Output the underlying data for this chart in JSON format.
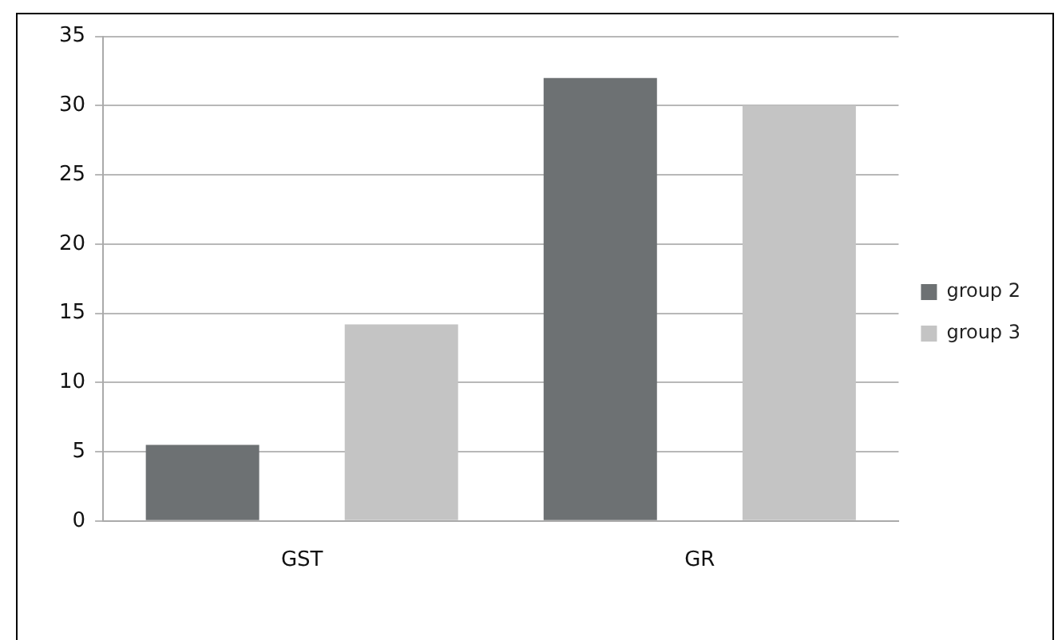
{
  "chart_data": {
    "type": "bar",
    "categories": [
      "GST",
      "GR"
    ],
    "series": [
      {
        "name": "group 2",
        "color": "#6d7173",
        "values": [
          5.5,
          32
        ]
      },
      {
        "name": "group 3",
        "color": "#c4c4c4",
        "values": [
          14.2,
          30
        ]
      }
    ],
    "ylim": [
      0,
      35
    ],
    "yticks": [
      0,
      5,
      10,
      15,
      20,
      25,
      30,
      35
    ],
    "grid": "y",
    "legend": "right"
  }
}
